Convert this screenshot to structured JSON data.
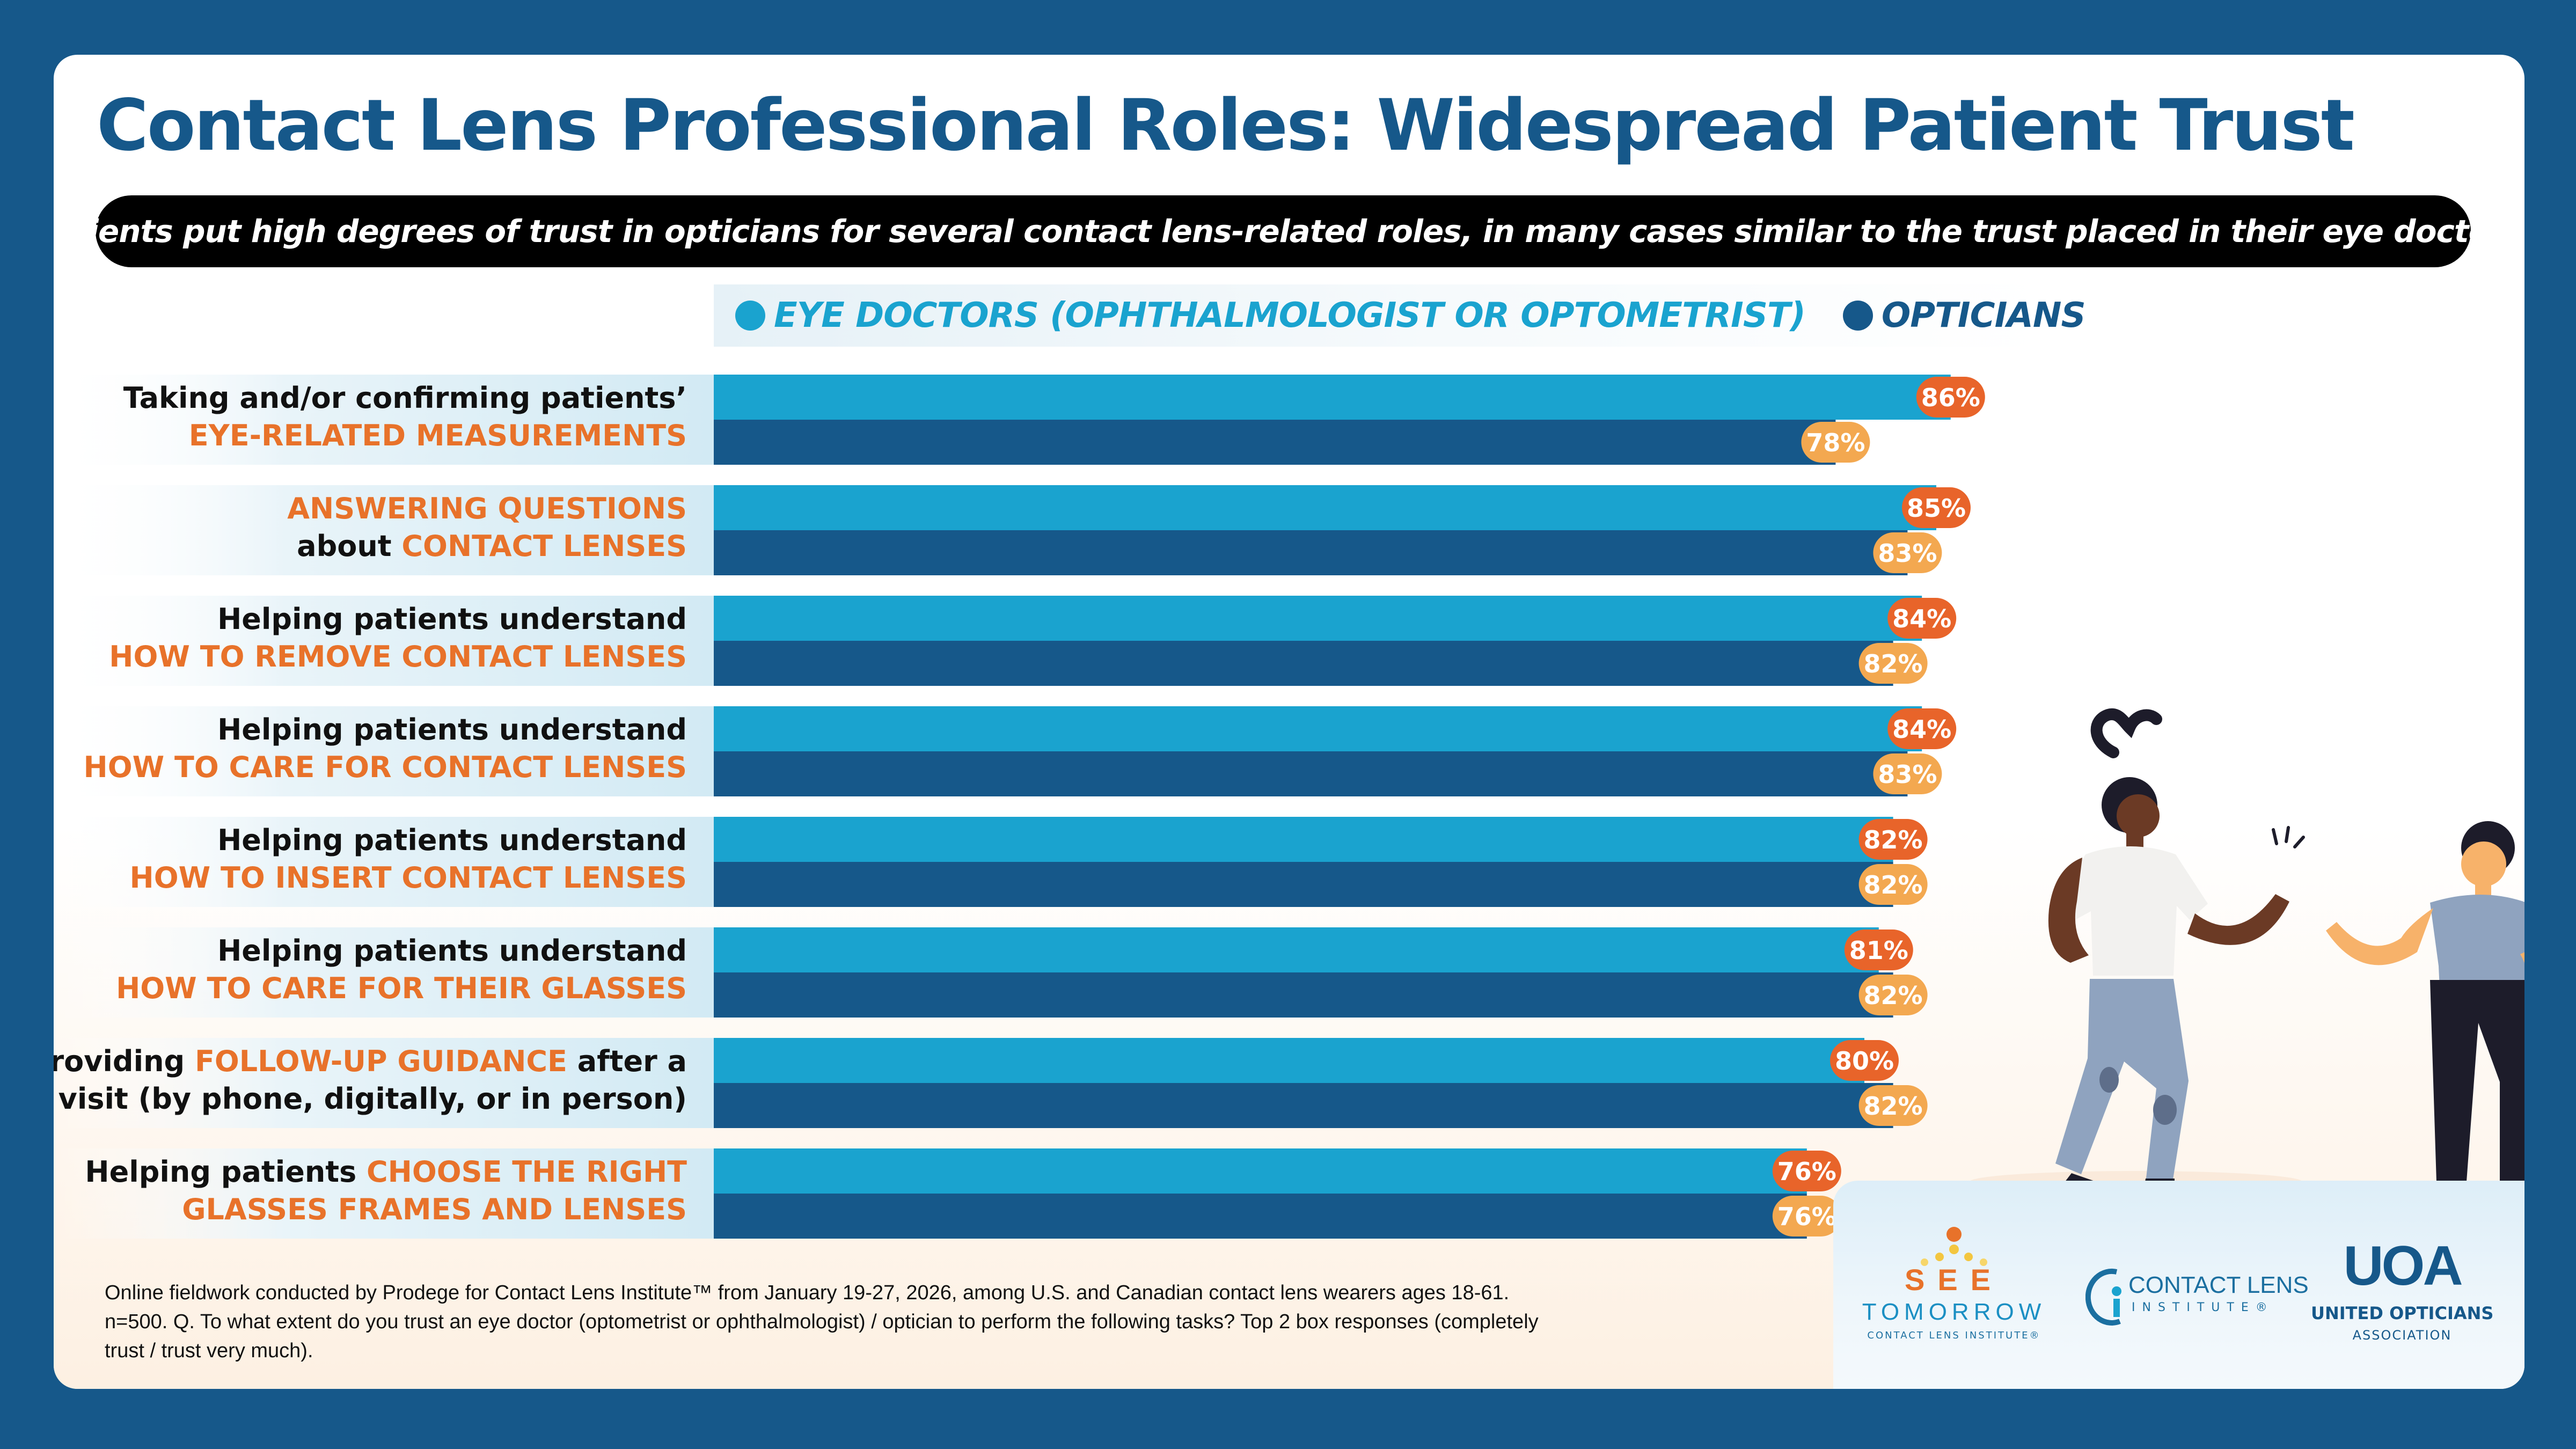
{
  "title": "Contact Lens Professional Roles: Widespread Patient Trust",
  "subtitle": "Patients put high degrees of trust in opticians for several contact lens-related roles, in many cases similar to the trust placed in their eye doctors.",
  "colors": {
    "background": "#16588a",
    "title": "#16588a",
    "eye_doctors_bar": "#1aa3cf",
    "opticians_bar": "#16588a",
    "eye_doctors_label_badge": "#e8642a",
    "opticians_label_badge": "#f3a850",
    "highlight_text": "#e8722a"
  },
  "chart_data": {
    "type": "bar",
    "orientation": "horizontal",
    "title": "Contact Lens Professional Roles: Widespread Patient Trust",
    "xlim": [
      0,
      100
    ],
    "legend": [
      {
        "name": "EYE DOCTORS (OPHTHALMOLOGIST OR OPTOMETRIST)",
        "color": "#1aa3cf"
      },
      {
        "name": "OPTICIANS",
        "color": "#16588a"
      }
    ],
    "categories": [
      {
        "lines": [
          [
            {
              "t": "Taking and/or confirming patients’",
              "h": false
            }
          ],
          [
            {
              "t": "EYE-RELATED MEASUREMENTS",
              "h": true
            }
          ]
        ]
      },
      {
        "lines": [
          [
            {
              "t": "ANSWERING QUESTIONS",
              "h": true
            }
          ],
          [
            {
              "t": "about ",
              "h": false
            },
            {
              "t": "CONTACT LENSES",
              "h": true
            }
          ]
        ]
      },
      {
        "lines": [
          [
            {
              "t": "Helping patients understand",
              "h": false
            }
          ],
          [
            {
              "t": "HOW TO REMOVE CONTACT LENSES",
              "h": true
            }
          ]
        ]
      },
      {
        "lines": [
          [
            {
              "t": "Helping patients understand",
              "h": false
            }
          ],
          [
            {
              "t": "HOW TO CARE FOR CONTACT LENSES",
              "h": true
            }
          ]
        ]
      },
      {
        "lines": [
          [
            {
              "t": "Helping patients understand",
              "h": false
            }
          ],
          [
            {
              "t": "HOW TO INSERT CONTACT LENSES",
              "h": true
            }
          ]
        ]
      },
      {
        "lines": [
          [
            {
              "t": "Helping patients understand",
              "h": false
            }
          ],
          [
            {
              "t": "HOW TO CARE FOR THEIR GLASSES",
              "h": true
            }
          ]
        ]
      },
      {
        "lines": [
          [
            {
              "t": "Providing ",
              "h": false
            },
            {
              "t": "FOLLOW-UP GUIDANCE",
              "h": true
            },
            {
              "t": " after a",
              "h": false
            }
          ],
          [
            {
              "t": "visit (by phone, digitally, or in person)",
              "h": false
            }
          ]
        ]
      },
      {
        "lines": [
          [
            {
              "t": "Helping patients ",
              "h": false
            },
            {
              "t": "CHOOSE THE RIGHT",
              "h": true
            }
          ],
          [
            {
              "t": "GLASSES FRAMES AND LENSES",
              "h": true
            }
          ]
        ]
      }
    ],
    "series": [
      {
        "name": "EYE DOCTORS (OPHTHALMOLOGIST OR OPTOMETRIST)",
        "values": [
          86,
          85,
          84,
          84,
          82,
          81,
          80,
          76
        ]
      },
      {
        "name": "OPTICIANS",
        "values": [
          78,
          83,
          82,
          83,
          82,
          82,
          82,
          76
        ]
      }
    ],
    "value_suffix": "%"
  },
  "footnote": "Online fieldwork conducted by Prodege for Contact Lens Institute™ from January 19-27, 2026, among U.S. and Canadian contact lens wearers ages 18-61. n=500. Q. To what extent do you trust an eye doctor (optometrist or ophthalmologist) / optician to perform the following tasks? Top 2 box responses (completely trust / trust very much).",
  "logos": {
    "see_tomorrow": {
      "line1": "SEE",
      "line2": "TOMORROW",
      "line3": "CONTACT LENS INSTITUTE®"
    },
    "contact_lens_institute": {
      "line1": "CONTACT LENS",
      "line2": "INSTITUTE®"
    },
    "uoa": {
      "mark": "UOA",
      "name": "UNITED OPTICIANS",
      "sub": "ASSOCIATION"
    }
  }
}
